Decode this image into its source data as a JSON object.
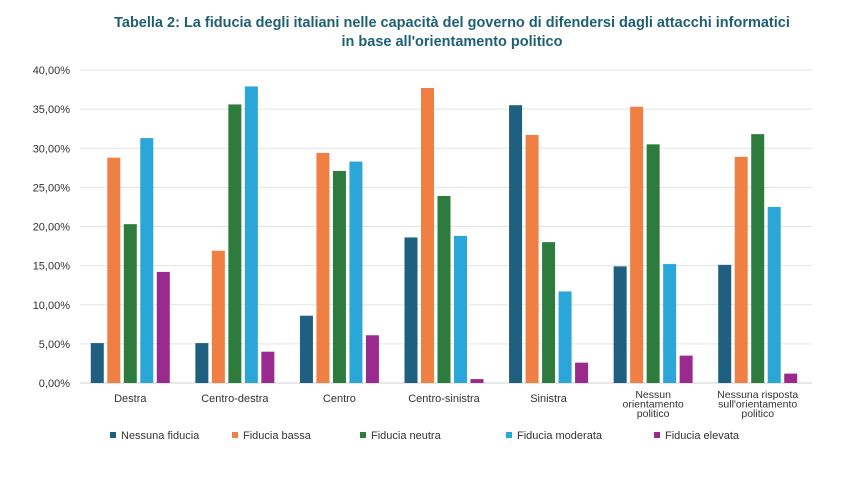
{
  "chart_data": {
    "type": "bar",
    "title": [
      "Tabella 2: La fiducia degli italiani nelle capacità del governo di difendersi dagli attacchi informatici",
      "in base all'orientamento politico"
    ],
    "categories": [
      [
        "Destra"
      ],
      [
        "Centro-destra"
      ],
      [
        "Centro"
      ],
      [
        "Centro-sinistra"
      ],
      [
        "Sinistra"
      ],
      [
        "Nessun",
        "orientamento",
        "politico"
      ],
      [
        "Nessuna risposta",
        "sull'orientamento",
        "politico"
      ]
    ],
    "series": [
      {
        "name": "Nessuna fiducia",
        "color": "#1f5f7f",
        "values": [
          5.1,
          5.1,
          8.6,
          18.6,
          35.5,
          14.9,
          15.1
        ]
      },
      {
        "name": "Fiducia bassa",
        "color": "#f07f43",
        "values": [
          28.8,
          16.9,
          29.4,
          37.7,
          31.7,
          35.3,
          28.9
        ]
      },
      {
        "name": "Fiducia neutra",
        "color": "#2e7b3e",
        "values": [
          20.3,
          35.6,
          27.1,
          23.9,
          18.0,
          30.5,
          31.8
        ]
      },
      {
        "name": "Fiducia moderata",
        "color": "#2aa6d8",
        "values": [
          31.3,
          37.9,
          28.3,
          18.8,
          11.7,
          15.2,
          22.5
        ]
      },
      {
        "name": "Fiducia elevata",
        "color": "#9b2a8f",
        "values": [
          14.2,
          4.0,
          6.1,
          0.5,
          2.6,
          3.5,
          1.2
        ]
      }
    ],
    "yticks": [
      "0,00%",
      "5,00%",
      "10,00%",
      "15,00%",
      "20,00%",
      "25,00%",
      "30,00%",
      "35,00%",
      "40,00%"
    ],
    "ylim": [
      0,
      40
    ],
    "grid": true,
    "legend_position": "bottom"
  }
}
